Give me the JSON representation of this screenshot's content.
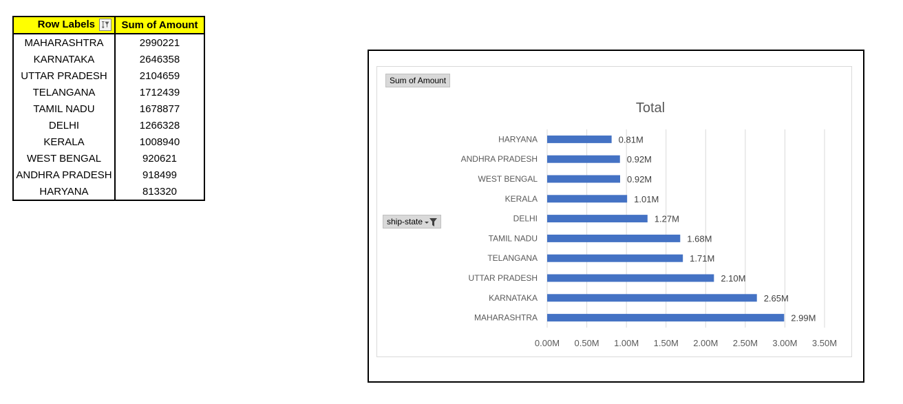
{
  "pivot": {
    "header_row_labels": "Row Labels",
    "header_sum": "Sum of Amount",
    "rows": [
      {
        "label": "MAHARASHTRA",
        "value": "2990221"
      },
      {
        "label": "KARNATAKA",
        "value": "2646358"
      },
      {
        "label": "UTTAR PRADESH",
        "value": "2104659"
      },
      {
        "label": "TELANGANA",
        "value": "1712439"
      },
      {
        "label": "TAMIL NADU",
        "value": "1678877"
      },
      {
        "label": "DELHI",
        "value": "1266328"
      },
      {
        "label": "KERALA",
        "value": "1008940"
      },
      {
        "label": "WEST BENGAL",
        "value": "920621"
      },
      {
        "label": "ANDHRA PRADESH",
        "value": "918499"
      },
      {
        "label": "HARYANA",
        "value": "813320"
      }
    ]
  },
  "chart_buttons": {
    "values_field": "Sum of Amount",
    "axis_field": "ship-state"
  },
  "chart_data": {
    "type": "bar",
    "orientation": "horizontal",
    "title": "Total",
    "categories": [
      "MAHARASHTRA",
      "KARNATAKA",
      "UTTAR PRADESH",
      "TELANGANA",
      "TAMIL NADU",
      "DELHI",
      "KERALA",
      "WEST BENGAL",
      "ANDHRA PRADESH",
      "HARYANA"
    ],
    "values": [
      2990221,
      2646358,
      2104659,
      1712439,
      1678877,
      1266328,
      1008940,
      920621,
      918499,
      813320
    ],
    "data_labels": [
      "2.99M",
      "2.65M",
      "2.10M",
      "1.71M",
      "1.68M",
      "1.27M",
      "1.01M",
      "0.92M",
      "0.92M",
      "0.81M"
    ],
    "x_ticks": [
      0,
      500000,
      1000000,
      1500000,
      2000000,
      2500000,
      3000000,
      3500000
    ],
    "x_tick_labels": [
      "0.00M",
      "0.50M",
      "1.00M",
      "1.50M",
      "2.00M",
      "2.50M",
      "3.00M",
      "3.50M"
    ],
    "xlim": [
      0,
      3500000
    ],
    "grid": true,
    "legend": "none",
    "bar_color": "#4472c4",
    "grid_color": "#d9d9d9"
  }
}
